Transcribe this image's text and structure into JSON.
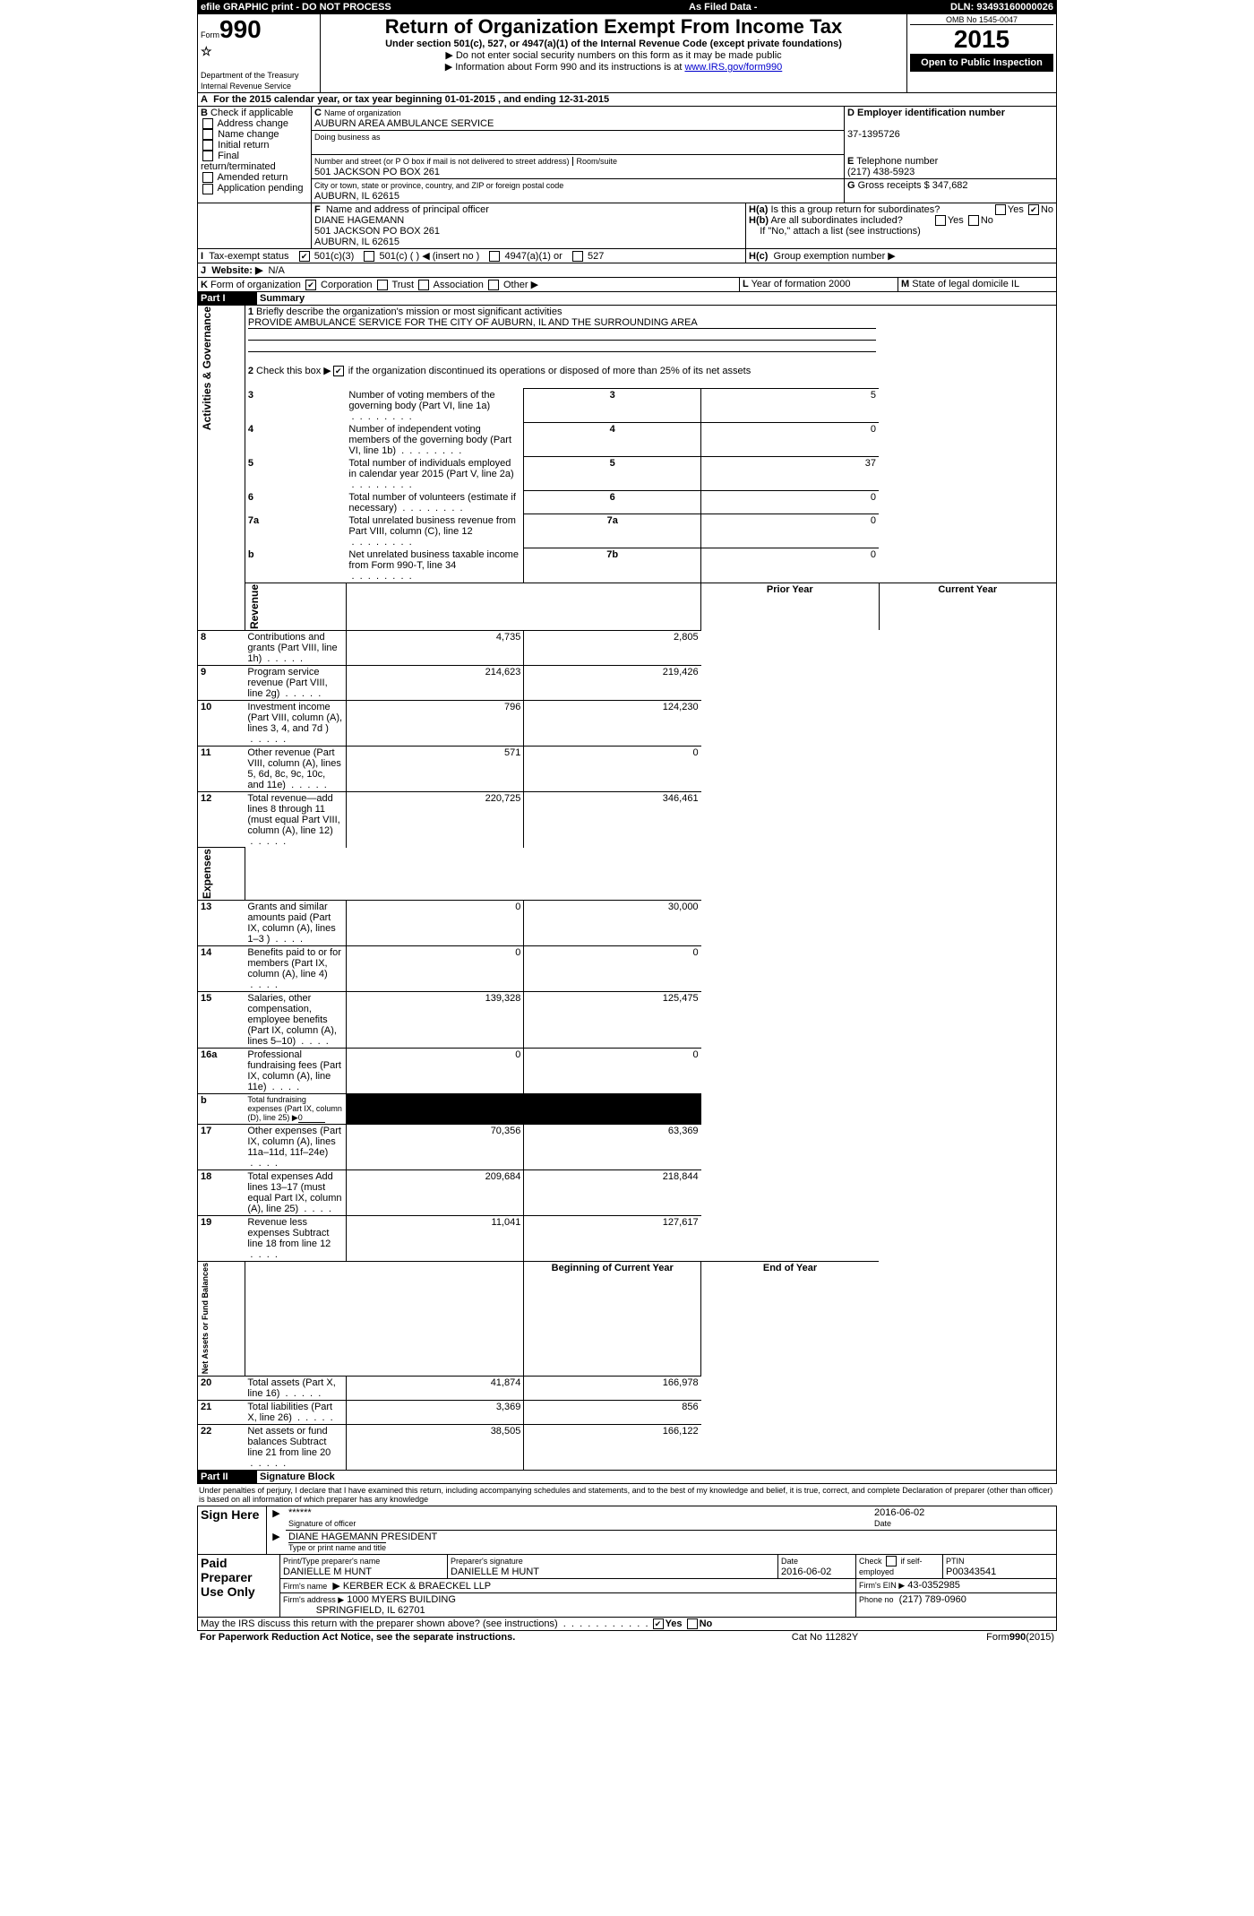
{
  "topbar": {
    "efile": "efile GRAPHIC print - DO NOT PROCESS",
    "asfiled": "As Filed Data -",
    "dln_label": "DLN:",
    "dln": "93493160000026"
  },
  "hdr": {
    "form": "Form",
    "num": "990",
    "dept": "Department of the Treasury",
    "irs": "Internal Revenue Service",
    "title": "Return of Organization Exempt From Income Tax",
    "sub": "Under section 501(c), 527, or 4947(a)(1) of the Internal Revenue Code (except private foundations)",
    "note1": "▶ Do not enter social security numbers on this form as it may be made public",
    "note2": "▶ Information about Form 990 and its instructions is at ",
    "link": "www.IRS.gov/form990",
    "omb": "OMB No 1545-0047",
    "yr": "2015",
    "open": "Open to Public Inspection"
  },
  "A": {
    "txt": "For the 2015 calendar year, or tax year beginning 01-01-2015    , and ending 12-31-2015"
  },
  "B": {
    "hdr": "Check if applicable",
    "opts": [
      "Address change",
      "Name change",
      "Initial return",
      "Final return/terminated",
      "Amended return",
      "Application pending"
    ]
  },
  "C": {
    "lbl": "Name of organization",
    "name": "AUBURN AREA AMBULANCE SERVICE",
    "dba_lbl": "Doing business as",
    "addr_lbl": "Number and street (or P O  box if mail is not delivered to street address)",
    "room_lbl": "Room/suite",
    "addr": "501 JACKSON PO BOX 261",
    "city_lbl": "City or town, state or province, country, and ZIP or foreign postal code",
    "city": "AUBURN, IL  62615"
  },
  "D": {
    "lbl": "Employer identification number",
    "val": "37-1395726"
  },
  "E": {
    "lbl": "Telephone number",
    "val": "(217) 438-5923"
  },
  "G": {
    "lbl": "Gross receipts $",
    "val": "347,682"
  },
  "F": {
    "lbl": "Name and address of principal officer",
    "name": "DIANE HAGEMANN",
    "addr1": "501 JACKSON PO BOX 261",
    "addr2": "AUBURN, IL  62615"
  },
  "H": {
    "a": "Is this a group return for subordinates?",
    "b": "Are all subordinates included?",
    "ifno": "If \"No,\" attach a list (see instructions)",
    "c": "Group exemption number ▶",
    "yes": "Yes",
    "no": "No"
  },
  "I": {
    "lbl": "Tax-exempt status",
    "o1": "501(c)(3)",
    "o2": "501(c) (  ) ◀ (insert no )",
    "o3": "4947(a)(1) or",
    "o4": "527"
  },
  "J": {
    "lbl": "Website: ▶",
    "val": "N/A"
  },
  "K": {
    "lbl": "Form of organization",
    "o": [
      "Corporation",
      "Trust",
      "Association",
      "Other ▶"
    ]
  },
  "L": {
    "lbl": "Year of formation",
    "val": "2000"
  },
  "M": {
    "lbl": "State of legal domicile",
    "val": "IL"
  },
  "p1": {
    "hdr": "Part I",
    "title": "Summary",
    "side1": "Activities & Governance",
    "side2": "Revenue",
    "side3": "Expenses",
    "side4": "Net Assets or Fund Balances"
  },
  "q1": {
    "lbl": "Briefly describe the organization's mission or most significant activities",
    "txt": "PROVIDE AMBULANCE SERVICE FOR THE CITY OF AUBURN, IL AND THE SURROUNDING AREA"
  },
  "q2": {
    "lbl": "Check this box ▶",
    "txt": "if the organization discontinued its operations or disposed of more than 25% of its net assets"
  },
  "r": [
    {
      "n": "3",
      "t": "Number of voting members of the governing body (Part VI, line 1a)",
      "c": "3",
      "v": "5"
    },
    {
      "n": "4",
      "t": "Number of independent voting members of the governing body (Part VI, line 1b)",
      "c": "4",
      "v": "0"
    },
    {
      "n": "5",
      "t": "Total number of individuals employed in calendar year 2015 (Part V, line 2a)",
      "c": "5",
      "v": "37"
    },
    {
      "n": "6",
      "t": "Total number of volunteers (estimate if necessary)",
      "c": "6",
      "v": "0"
    },
    {
      "n": "7a",
      "t": "Total unrelated business revenue from Part VIII, column (C), line 12",
      "c": "7a",
      "v": "0"
    },
    {
      "n": "b",
      "t": "Net unrelated business taxable income from Form 990-T, line 34",
      "c": "7b",
      "v": "0"
    }
  ],
  "revhdr": {
    "py": "Prior Year",
    "cy": "Current Year"
  },
  "rev": [
    {
      "n": "8",
      "t": "Contributions and grants (Part VIII, line 1h)",
      "p": "4,735",
      "c": "2,805"
    },
    {
      "n": "9",
      "t": "Program service revenue (Part VIII, line 2g)",
      "p": "214,623",
      "c": "219,426"
    },
    {
      "n": "10",
      "t": "Investment income (Part VIII, column (A), lines 3, 4, and 7d )",
      "p": "796",
      "c": "124,230"
    },
    {
      "n": "11",
      "t": "Other revenue (Part VIII, column (A), lines 5, 6d, 8c, 9c, 10c, and 11e)",
      "p": "571",
      "c": "0"
    },
    {
      "n": "12",
      "t": "Total revenue—add lines 8 through 11 (must equal Part VIII, column (A), line 12)",
      "p": "220,725",
      "c": "346,461"
    }
  ],
  "exp": [
    {
      "n": "13",
      "t": "Grants and similar amounts paid (Part IX, column (A), lines 1–3 )",
      "p": "0",
      "c": "30,000"
    },
    {
      "n": "14",
      "t": "Benefits paid to or for members (Part IX, column (A), line 4)",
      "p": "0",
      "c": "0"
    },
    {
      "n": "15",
      "t": "Salaries, other compensation, employee benefits (Part IX, column (A), lines 5–10)",
      "p": "139,328",
      "c": "125,475"
    },
    {
      "n": "16a",
      "t": "Professional fundraising fees (Part IX, column (A), line 11e)",
      "p": "0",
      "c": "0"
    },
    {
      "n": "b",
      "t": "Total fundraising expenses (Part IX, column (D), line 25) ▶",
      "p": "",
      "c": "",
      "blk": true,
      "u": "0"
    },
    {
      "n": "17",
      "t": "Other expenses (Part IX, column (A), lines 11a–11d, 11f–24e)",
      "p": "70,356",
      "c": "63,369"
    },
    {
      "n": "18",
      "t": "Total expenses Add lines 13–17 (must equal Part IX, column (A), line 25)",
      "p": "209,684",
      "c": "218,844"
    },
    {
      "n": "19",
      "t": "Revenue less expenses Subtract line 18 from line 12",
      "p": "11,041",
      "c": "127,617"
    }
  ],
  "nethdr": {
    "b": "Beginning of Current Year",
    "e": "End of Year"
  },
  "net": [
    {
      "n": "20",
      "t": "Total assets (Part X, line 16)",
      "p": "41,874",
      "c": "166,978"
    },
    {
      "n": "21",
      "t": "Total liabilities (Part X, line 26)",
      "p": "3,369",
      "c": "856"
    },
    {
      "n": "22",
      "t": "Net assets or fund balances Subtract line 21 from line 20",
      "p": "38,505",
      "c": "166,122"
    }
  ],
  "p2": {
    "hdr": "Part II",
    "title": "Signature Block",
    "decl": "Under penalties of perjury, I declare that I have examined this return, including accompanying schedules and statements, and to the best of my knowledge and belief, it is true, correct, and complete Declaration of preparer (other than officer) is based on all information of which preparer has any knowledge"
  },
  "sign": {
    "here": "Sign Here",
    "stars": "******",
    "date": "2016-06-02",
    "sigof": "Signature of officer",
    "datelbl": "Date",
    "type": "Type or print name and title",
    "name": "DIANE HAGEMANN PRESIDENT"
  },
  "paid": {
    "hdr": "Paid Preparer Use Only",
    "pn_lbl": "Print/Type preparer's name",
    "pn": "DANIELLE M HUNT",
    "ps_lbl": "Preparer's signature",
    "ps": "DANIELLE M HUNT",
    "d_lbl": "Date",
    "d": "2016-06-02",
    "se": "Check    if self-employed",
    "ptin_lbl": "PTIN",
    "ptin": "P00343541",
    "fn_lbl": "Firm's name",
    "fn": "KERBER ECK & BRAECKEL LLP",
    "fe_lbl": "Firm's EIN ▶",
    "fe": "43-0352985",
    "fa_lbl": "Firm's address ▶",
    "fa1": "1000 MYERS BUILDING",
    "fa2": "SPRINGFIELD, IL  62701",
    "ph_lbl": "Phone no",
    "ph": "(217) 789-0960"
  },
  "may": {
    "q": "May the IRS discuss this return with the preparer shown above? (see instructions)",
    "yes": "Yes",
    "no": "No"
  },
  "foot": {
    "l": "For Paperwork Reduction Act Notice, see the separate instructions.",
    "c": "Cat No 11282Y",
    "r": "Form",
    "rn": "990",
    "ry": "(2015)"
  }
}
